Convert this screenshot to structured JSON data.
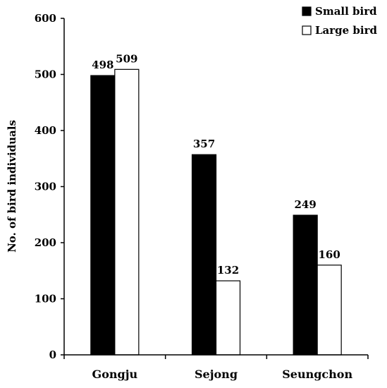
{
  "chart_data": {
    "type": "bar",
    "title": "",
    "xlabel": "",
    "ylabel": "No. of bird individuals",
    "ylim": [
      0,
      600
    ],
    "yticks": [
      0,
      100,
      200,
      300,
      400,
      500,
      600
    ],
    "categories": [
      "Gongju",
      "Sejong",
      "Seungchon"
    ],
    "series": [
      {
        "name": "Small bird",
        "values": [
          498,
          357,
          249
        ],
        "color": "#000000"
      },
      {
        "name": "Large bird",
        "values": [
          509,
          132,
          160
        ],
        "color": "#ffffff"
      }
    ],
    "legend_position": "top-right",
    "grid": false
  }
}
